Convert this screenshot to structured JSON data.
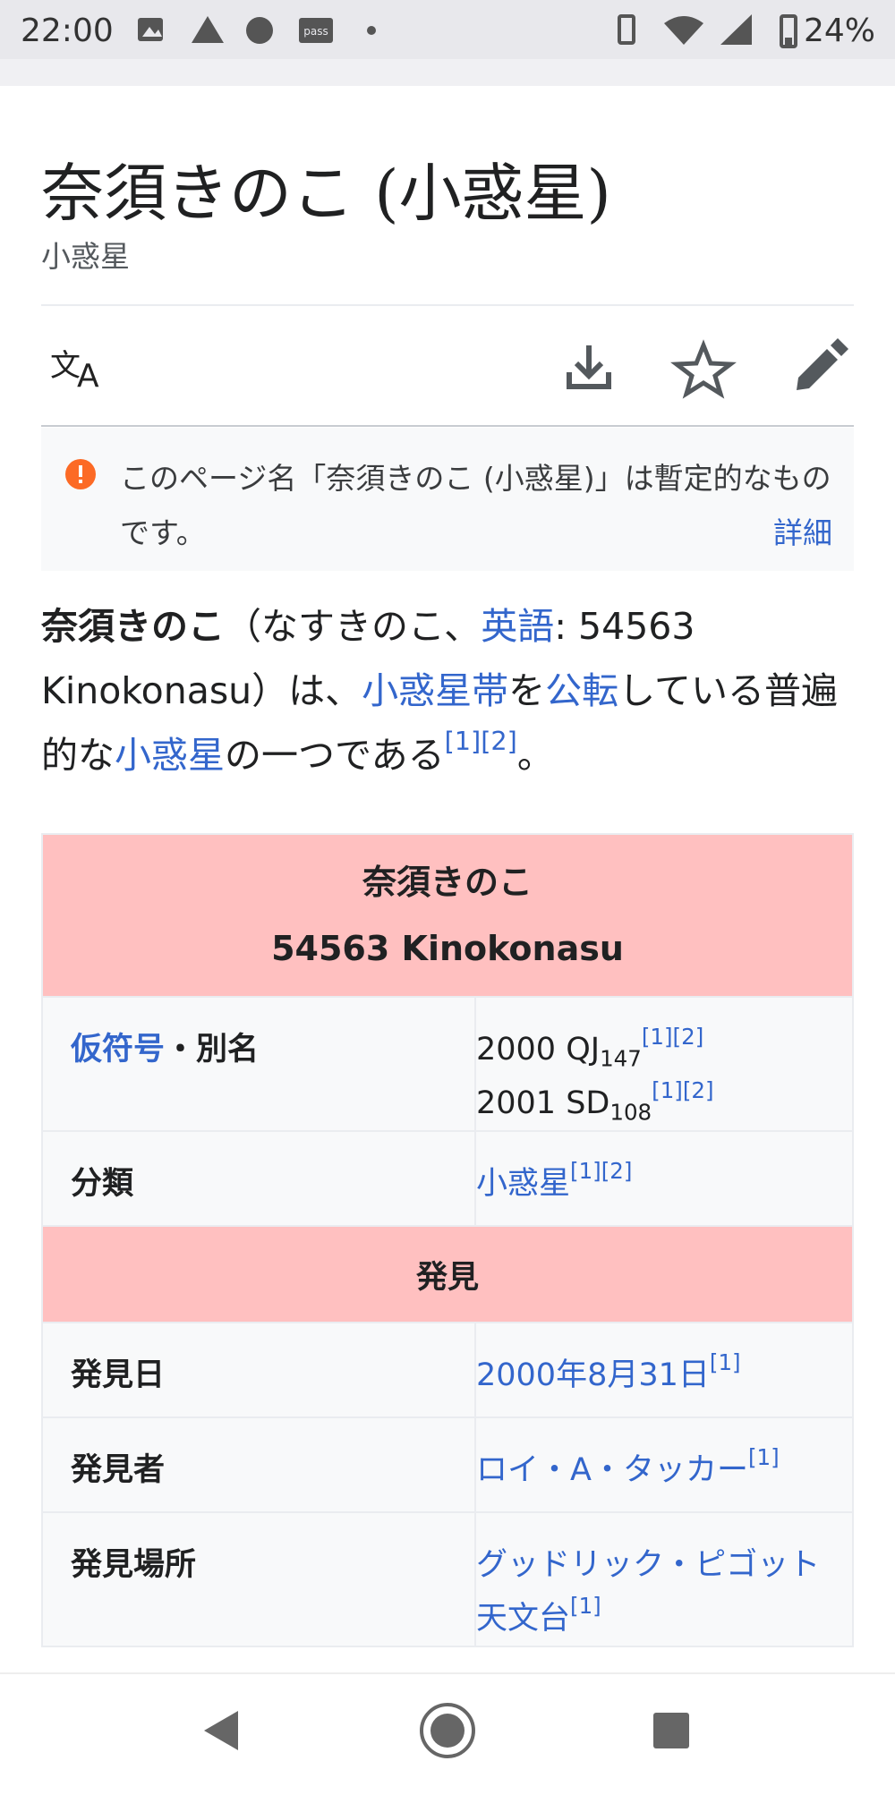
{
  "status_bar": {
    "time": "22:00",
    "battery": "24%"
  },
  "header": {
    "title": "奈須きのこ (小惑星)",
    "subtitle": "小惑星"
  },
  "notice": {
    "text": "このページ名「奈須きのこ (小惑星)」は暫定的なものです。",
    "link": "詳細"
  },
  "paragraph": [
    {
      "text": "奈須きのこ",
      "style": "bold"
    },
    {
      "text": "（なすきのこ、",
      "style": "text"
    },
    {
      "text": "英語",
      "style": "link"
    },
    {
      "text": ": 54563 Kinokonasu）は、",
      "style": "text"
    },
    {
      "text": "小惑星帯",
      "style": "link"
    },
    {
      "text": "を",
      "style": "text"
    },
    {
      "text": "公転",
      "style": "link"
    },
    {
      "text": "している普遍的な",
      "style": "text"
    },
    {
      "text": "小惑星",
      "style": "link"
    },
    {
      "text": "の一つである",
      "style": "text"
    },
    {
      "text": "[1][2]",
      "style": "ref"
    },
    {
      "text": "。",
      "style": "text"
    }
  ],
  "infobox": {
    "title": [
      "奈須きのこ",
      "54563 Kinokonasu"
    ],
    "rows": [
      {
        "label": [
          {
            "text": "仮符号",
            "style": "link"
          },
          {
            "text": "・別名",
            "style": "bold"
          }
        ],
        "value": [
          [
            {
              "text": "2000 QJ",
              "style": "text"
            },
            {
              "text": "147",
              "style": "sub"
            },
            {
              "text": "[1][2]",
              "style": "ref"
            }
          ],
          [
            {
              "text": "2001 SD",
              "style": "text"
            },
            {
              "text": "108",
              "style": "sub"
            },
            {
              "text": "[1][2]",
              "style": "ref"
            }
          ]
        ]
      },
      {
        "label": [
          {
            "text": "分類",
            "style": "bold"
          }
        ],
        "value": [
          [
            {
              "text": "小惑星",
              "style": "link"
            },
            {
              "text": "[1][2]",
              "style": "ref"
            }
          ]
        ]
      },
      {
        "section": "発見"
      },
      {
        "label": [
          {
            "text": "発見日",
            "style": "bold"
          }
        ],
        "value": [
          [
            {
              "text": "2000年8月31日",
              "style": "link"
            },
            {
              "text": "[1]",
              "style": "ref"
            }
          ]
        ]
      },
      {
        "label": [
          {
            "text": "発見者",
            "style": "bold"
          }
        ],
        "value": [
          [
            {
              "text": "ロイ・A・タッカー",
              "style": "link"
            },
            {
              "text": "[1]",
              "style": "ref"
            }
          ]
        ]
      },
      {
        "label": [
          {
            "text": "発見場所",
            "style": "bold"
          }
        ],
        "value": [
          [
            {
              "text": "グッドリック・ピゴット天文台",
              "style": "link"
            },
            {
              "text": "[1]",
              "style": "ref"
            }
          ]
        ]
      }
    ]
  }
}
